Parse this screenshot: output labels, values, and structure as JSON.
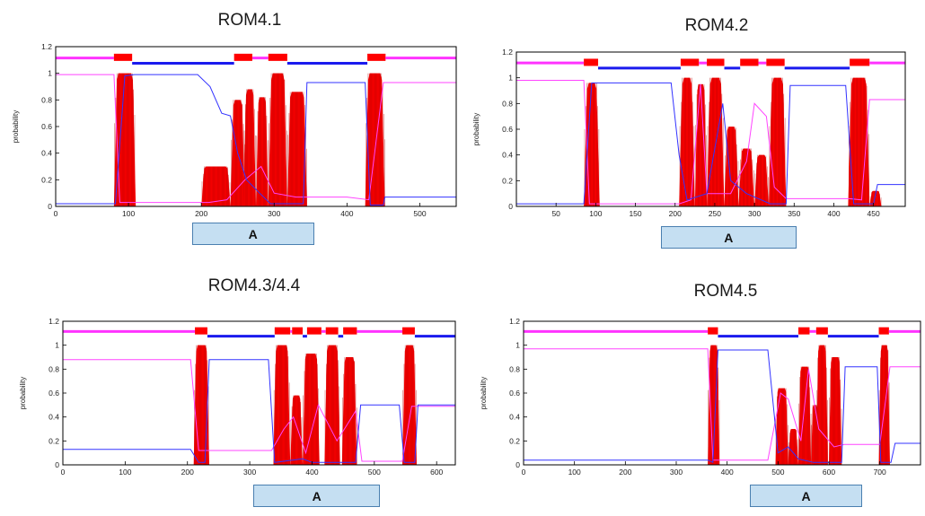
{
  "chart_data": [
    {
      "type": "line",
      "title": "ROM4.1",
      "ylabel": "probability",
      "xlim": [
        0,
        550
      ],
      "ylim": [
        0,
        1.2
      ],
      "xticks": [
        0,
        100,
        200,
        300,
        400,
        500
      ],
      "yticks": [
        0,
        0.2,
        0.4,
        0.6,
        0.8,
        1,
        1.2
      ],
      "region_label": "A",
      "region_range": [
        212,
        330
      ],
      "tm_segments": [
        [
          80,
          105
        ],
        [
          245,
          270
        ],
        [
          292,
          318
        ],
        [
          428,
          453
        ]
      ],
      "tm_peaks": [
        [
          80,
          110,
          1.0
        ],
        [
          200,
          240,
          0.3
        ],
        [
          240,
          260,
          0.8
        ],
        [
          258,
          275,
          0.88
        ],
        [
          275,
          292,
          0.82
        ],
        [
          292,
          318,
          1.0
        ],
        [
          318,
          345,
          0.86
        ],
        [
          425,
          452,
          1.0
        ]
      ],
      "inside_line": [
        [
          0,
          0.02
        ],
        [
          82,
          0.02
        ],
        [
          95,
          0.98
        ],
        [
          108,
          0.99
        ],
        [
          195,
          0.99
        ],
        [
          212,
          0.9
        ],
        [
          228,
          0.7
        ],
        [
          240,
          0.68
        ],
        [
          250,
          0.4
        ],
        [
          262,
          0.2
        ],
        [
          280,
          0.1
        ],
        [
          295,
          0.02
        ],
        [
          340,
          0.02
        ],
        [
          345,
          0.93
        ],
        [
          425,
          0.93
        ],
        [
          432,
          0.01
        ],
        [
          450,
          0.01
        ],
        [
          452,
          0.07
        ],
        [
          550,
          0.07
        ]
      ],
      "outside_line": [
        [
          0,
          0.99
        ],
        [
          80,
          0.99
        ],
        [
          88,
          0.03
        ],
        [
          210,
          0.03
        ],
        [
          235,
          0.05
        ],
        [
          260,
          0.2
        ],
        [
          282,
          0.3
        ],
        [
          300,
          0.1
        ],
        [
          330,
          0.07
        ],
        [
          400,
          0.07
        ],
        [
          430,
          0.05
        ],
        [
          450,
          0.93
        ],
        [
          550,
          0.93
        ]
      ],
      "topology_bar": [
        [
          0,
          80,
          "o"
        ],
        [
          80,
          105,
          "m"
        ],
        [
          105,
          245,
          "i"
        ],
        [
          245,
          270,
          "m"
        ],
        [
          270,
          292,
          "o"
        ],
        [
          292,
          318,
          "m"
        ],
        [
          318,
          428,
          "i"
        ],
        [
          428,
          453,
          "m"
        ],
        [
          453,
          550,
          "o"
        ]
      ]
    },
    {
      "type": "line",
      "title": "ROM4.2",
      "ylabel": "probability",
      "xlim": [
        0,
        490
      ],
      "ylim": [
        0,
        1.2
      ],
      "xticks": [
        50,
        100,
        150,
        200,
        250,
        300,
        350,
        400,
        450
      ],
      "yticks": [
        0,
        0.2,
        0.4,
        0.6,
        0.8,
        1,
        1.2
      ],
      "region_label": "A",
      "region_range": [
        205,
        330
      ],
      "tm_segments": [
        [
          85,
          103
        ],
        [
          207,
          230
        ],
        [
          240,
          262
        ],
        [
          282,
          305
        ],
        [
          315,
          338
        ],
        [
          420,
          445
        ]
      ],
      "tm_peaks": [
        [
          85,
          105,
          0.96
        ],
        [
          205,
          225,
          1.0
        ],
        [
          225,
          240,
          0.95
        ],
        [
          240,
          262,
          1.0
        ],
        [
          262,
          280,
          0.62
        ],
        [
          280,
          300,
          0.45
        ],
        [
          300,
          318,
          0.4
        ],
        [
          318,
          340,
          1.0
        ],
        [
          418,
          445,
          1.0
        ],
        [
          445,
          460,
          0.12
        ]
      ],
      "inside_line": [
        [
          0,
          0.02
        ],
        [
          85,
          0.02
        ],
        [
          95,
          0.96
        ],
        [
          108,
          0.96
        ],
        [
          195,
          0.96
        ],
        [
          205,
          0.4
        ],
        [
          215,
          0.05
        ],
        [
          240,
          0.1
        ],
        [
          260,
          0.8
        ],
        [
          270,
          0.2
        ],
        [
          290,
          0.1
        ],
        [
          320,
          0.02
        ],
        [
          340,
          0.02
        ],
        [
          345,
          0.94
        ],
        [
          415,
          0.94
        ],
        [
          425,
          0.02
        ],
        [
          450,
          0.02
        ],
        [
          455,
          0.17
        ],
        [
          490,
          0.17
        ]
      ],
      "outside_line": [
        [
          0,
          0.98
        ],
        [
          85,
          0.98
        ],
        [
          92,
          0.02
        ],
        [
          205,
          0.02
        ],
        [
          220,
          0.05
        ],
        [
          232,
          0.95
        ],
        [
          240,
          0.1
        ],
        [
          270,
          0.1
        ],
        [
          290,
          0.35
        ],
        [
          300,
          0.8
        ],
        [
          315,
          0.7
        ],
        [
          325,
          0.15
        ],
        [
          340,
          0.06
        ],
        [
          420,
          0.06
        ],
        [
          435,
          0.05
        ],
        [
          445,
          0.83
        ],
        [
          490,
          0.83
        ]
      ],
      "topology_bar": [
        [
          0,
          85,
          "o"
        ],
        [
          85,
          103,
          "m"
        ],
        [
          103,
          207,
          "i"
        ],
        [
          207,
          230,
          "m"
        ],
        [
          230,
          240,
          "o"
        ],
        [
          240,
          262,
          "m"
        ],
        [
          262,
          282,
          "i"
        ],
        [
          282,
          305,
          "m"
        ],
        [
          305,
          315,
          "o"
        ],
        [
          315,
          338,
          "m"
        ],
        [
          338,
          420,
          "i"
        ],
        [
          420,
          445,
          "m"
        ],
        [
          445,
          490,
          "o"
        ]
      ]
    },
    {
      "type": "line",
      "title": "ROM4.3/4.4",
      "ylabel": "probability",
      "xlim": [
        0,
        630
      ],
      "ylim": [
        0,
        1.2
      ],
      "xticks": [
        0,
        100,
        200,
        300,
        400,
        500,
        600
      ],
      "yticks": [
        0,
        0.2,
        0.4,
        0.6,
        0.8,
        1,
        1.2
      ],
      "region_label": "A",
      "region_range": [
        335,
        480
      ],
      "tm_segments": [
        [
          212,
          232
        ],
        [
          340,
          365
        ],
        [
          368,
          385
        ],
        [
          392,
          415
        ],
        [
          422,
          442
        ],
        [
          450,
          472
        ],
        [
          545,
          565
        ]
      ],
      "tm_peaks": [
        [
          210,
          235,
          1.0
        ],
        [
          338,
          365,
          1.0
        ],
        [
          365,
          385,
          0.58
        ],
        [
          385,
          412,
          0.93
        ],
        [
          420,
          445,
          1.0
        ],
        [
          448,
          472,
          0.9
        ],
        [
          545,
          568,
          1.0
        ]
      ],
      "inside_line": [
        [
          0,
          0.13
        ],
        [
          205,
          0.13
        ],
        [
          218,
          0.02
        ],
        [
          228,
          0.02
        ],
        [
          235,
          0.88
        ],
        [
          330,
          0.88
        ],
        [
          340,
          0.02
        ],
        [
          385,
          0.05
        ],
        [
          400,
          0.02
        ],
        [
          470,
          0.02
        ],
        [
          478,
          0.5
        ],
        [
          540,
          0.5
        ],
        [
          548,
          0.02
        ],
        [
          565,
          0.02
        ],
        [
          570,
          0.5
        ],
        [
          630,
          0.5
        ]
      ],
      "outside_line": [
        [
          0,
          0.88
        ],
        [
          205,
          0.88
        ],
        [
          218,
          0.12
        ],
        [
          335,
          0.12
        ],
        [
          355,
          0.3
        ],
        [
          370,
          0.4
        ],
        [
          390,
          0.1
        ],
        [
          410,
          0.5
        ],
        [
          440,
          0.2
        ],
        [
          470,
          0.45
        ],
        [
          480,
          0.03
        ],
        [
          545,
          0.03
        ],
        [
          560,
          0.49
        ],
        [
          630,
          0.49
        ]
      ],
      "topology_bar": [
        [
          0,
          212,
          "o"
        ],
        [
          212,
          232,
          "m"
        ],
        [
          232,
          340,
          "i"
        ],
        [
          340,
          365,
          "m"
        ],
        [
          365,
          368,
          "o"
        ],
        [
          368,
          385,
          "m"
        ],
        [
          385,
          392,
          "i"
        ],
        [
          392,
          415,
          "m"
        ],
        [
          415,
          422,
          "o"
        ],
        [
          422,
          442,
          "m"
        ],
        [
          442,
          450,
          "i"
        ],
        [
          450,
          472,
          "m"
        ],
        [
          472,
          545,
          "o"
        ],
        [
          545,
          565,
          "m"
        ],
        [
          565,
          630,
          "i"
        ]
      ]
    },
    {
      "type": "line",
      "title": "ROM4.5",
      "ylabel": "probability",
      "xlim": [
        0,
        780
      ],
      "ylim": [
        0,
        1.2
      ],
      "xticks": [
        0,
        100,
        200,
        300,
        400,
        500,
        600,
        700
      ],
      "yticks": [
        0,
        0.2,
        0.4,
        0.6,
        0.8,
        1,
        1.2
      ],
      "region_label": "A",
      "region_range": [
        480,
        630
      ],
      "tm_segments": [
        [
          362,
          382
        ],
        [
          540,
          562
        ],
        [
          575,
          598
        ],
        [
          698,
          718
        ]
      ],
      "tm_peaks": [
        [
          362,
          385,
          1.0
        ],
        [
          495,
          520,
          0.64
        ],
        [
          520,
          540,
          0.3
        ],
        [
          540,
          565,
          0.82
        ],
        [
          565,
          580,
          0.5
        ],
        [
          575,
          598,
          1.0
        ],
        [
          600,
          625,
          0.9
        ],
        [
          698,
          720,
          1.0
        ]
      ],
      "inside_line": [
        [
          0,
          0.04
        ],
        [
          362,
          0.04
        ],
        [
          372,
          0.02
        ],
        [
          382,
          0.96
        ],
        [
          480,
          0.96
        ],
        [
          500,
          0.1
        ],
        [
          520,
          0.15
        ],
        [
          540,
          0.05
        ],
        [
          570,
          0.02
        ],
        [
          625,
          0.02
        ],
        [
          632,
          0.82
        ],
        [
          695,
          0.82
        ],
        [
          702,
          0.02
        ],
        [
          722,
          0.02
        ],
        [
          730,
          0.18
        ],
        [
          780,
          0.18
        ]
      ],
      "outside_line": [
        [
          0,
          0.97
        ],
        [
          362,
          0.97
        ],
        [
          372,
          0.04
        ],
        [
          480,
          0.04
        ],
        [
          505,
          0.6
        ],
        [
          520,
          0.55
        ],
        [
          545,
          0.2
        ],
        [
          560,
          0.8
        ],
        [
          580,
          0.3
        ],
        [
          610,
          0.15
        ],
        [
          630,
          0.17
        ],
        [
          700,
          0.17
        ],
        [
          720,
          0.82
        ],
        [
          780,
          0.82
        ]
      ],
      "topology_bar": [
        [
          0,
          362,
          "o"
        ],
        [
          362,
          382,
          "m"
        ],
        [
          382,
          540,
          "i"
        ],
        [
          540,
          562,
          "m"
        ],
        [
          562,
          575,
          "o"
        ],
        [
          575,
          598,
          "m"
        ],
        [
          598,
          698,
          "i"
        ],
        [
          698,
          718,
          "m"
        ],
        [
          718,
          780,
          "o"
        ]
      ]
    }
  ],
  "colors": {
    "tm": "#ff0000",
    "tm_edge": "#b30000",
    "inside": "#3333ff",
    "outside": "#ff44ff",
    "bar_inside": "#1a1aee",
    "bar_outside": "#ff33ff",
    "frame": "#000000"
  }
}
